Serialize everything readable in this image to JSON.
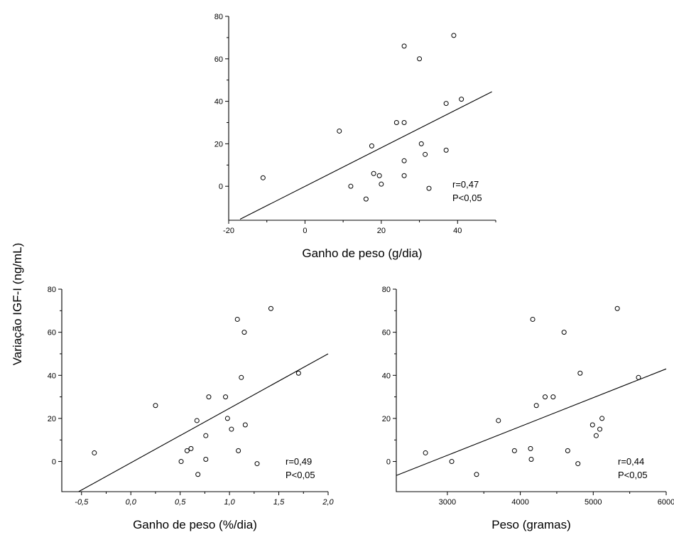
{
  "shared_ylabel": "Variação IGF-I (ng/mL)",
  "chart_data": [
    {
      "id": "top",
      "type": "scatter",
      "xlabel": "Ganho de peso (g/dia)",
      "ylabel": "Variação IGF-I (ng/mL)",
      "xlim": [
        -20,
        50
      ],
      "ylim": [
        -16,
        80
      ],
      "xticks": [
        -20,
        0,
        20,
        40
      ],
      "xtick_labels": [
        "-20",
        "0",
        "20",
        "40"
      ],
      "xtick_italic": false,
      "yticks": [
        0,
        20,
        40,
        60,
        80
      ],
      "ytick_labels": [
        "0",
        "20",
        "40",
        "60",
        "80"
      ],
      "points": [
        {
          "x": -11,
          "y": 4
        },
        {
          "x": 9,
          "y": 26
        },
        {
          "x": 12,
          "y": 0
        },
        {
          "x": 16,
          "y": -6
        },
        {
          "x": 17.5,
          "y": 19
        },
        {
          "x": 18,
          "y": 6
        },
        {
          "x": 19.5,
          "y": 5
        },
        {
          "x": 20,
          "y": 1
        },
        {
          "x": 24,
          "y": 30
        },
        {
          "x": 26,
          "y": 66
        },
        {
          "x": 26,
          "y": 30
        },
        {
          "x": 26,
          "y": 12
        },
        {
          "x": 26,
          "y": 5
        },
        {
          "x": 30,
          "y": 60
        },
        {
          "x": 30.5,
          "y": 20
        },
        {
          "x": 31.5,
          "y": 15
        },
        {
          "x": 32.5,
          "y": -1
        },
        {
          "x": 37,
          "y": 39
        },
        {
          "x": 37,
          "y": 17
        },
        {
          "x": 39,
          "y": 71
        },
        {
          "x": 41,
          "y": 41
        }
      ],
      "fit_line": {
        "x": [
          -17,
          49
        ],
        "y": [
          -15.5,
          44.5
        ]
      },
      "annotation": [
        "r=0,47",
        "P<0,05"
      ]
    },
    {
      "id": "bottom-left",
      "type": "scatter",
      "xlabel": "Ganho de peso (%/dia)",
      "ylabel": "Variação IGF-I (ng/mL)",
      "xlim": [
        -0.7,
        2.0
      ],
      "ylim": [
        -14,
        80
      ],
      "xticks": [
        -0.5,
        0.0,
        0.5,
        1.0,
        1.5,
        2.0
      ],
      "xtick_labels": [
        "-0,5",
        "0,0",
        "0,5",
        "1,0",
        "1,5",
        "2,0"
      ],
      "xtick_italic": true,
      "yticks": [
        0,
        20,
        40,
        60,
        80
      ],
      "ytick_labels": [
        "0",
        "20",
        "40",
        "60",
        "80"
      ],
      "points": [
        {
          "x": -0.37,
          "y": 4
        },
        {
          "x": 0.25,
          "y": 26
        },
        {
          "x": 0.51,
          "y": 0
        },
        {
          "x": 0.57,
          "y": 5
        },
        {
          "x": 0.61,
          "y": 6
        },
        {
          "x": 0.67,
          "y": 19
        },
        {
          "x": 0.68,
          "y": -6
        },
        {
          "x": 0.76,
          "y": 12
        },
        {
          "x": 0.76,
          "y": 1
        },
        {
          "x": 0.79,
          "y": 30
        },
        {
          "x": 0.96,
          "y": 30
        },
        {
          "x": 0.98,
          "y": 20
        },
        {
          "x": 1.02,
          "y": 15
        },
        {
          "x": 1.08,
          "y": 66
        },
        {
          "x": 1.09,
          "y": 5
        },
        {
          "x": 1.12,
          "y": 39
        },
        {
          "x": 1.15,
          "y": 60
        },
        {
          "x": 1.16,
          "y": 17
        },
        {
          "x": 1.28,
          "y": -1
        },
        {
          "x": 1.42,
          "y": 71
        },
        {
          "x": 1.7,
          "y": 41
        }
      ],
      "fit_line": {
        "x": [
          -0.53,
          2.0
        ],
        "y": [
          -14,
          50
        ]
      },
      "annotation": [
        "r=0,49",
        "P<0,05"
      ]
    },
    {
      "id": "bottom-right",
      "type": "scatter",
      "xlabel": "Peso (gramas)",
      "ylabel": "Variação IGF-I (ng/mL)",
      "xlim": [
        2300,
        6000
      ],
      "ylim": [
        -14,
        80
      ],
      "xticks": [
        3000,
        4000,
        5000,
        6000
      ],
      "xtick_labels": [
        "3000",
        "4000",
        "5000",
        "6000"
      ],
      "xtick_italic": false,
      "yticks": [
        0,
        20,
        40,
        60,
        80
      ],
      "ytick_labels": [
        "0",
        "20",
        "40",
        "60",
        "80"
      ],
      "points": [
        {
          "x": 2700,
          "y": 4
        },
        {
          "x": 3060,
          "y": 0
        },
        {
          "x": 3400,
          "y": -6
        },
        {
          "x": 3700,
          "y": 19
        },
        {
          "x": 3920,
          "y": 5
        },
        {
          "x": 4140,
          "y": 6
        },
        {
          "x": 4150,
          "y": 1
        },
        {
          "x": 4170,
          "y": 66
        },
        {
          "x": 4220,
          "y": 26
        },
        {
          "x": 4340,
          "y": 30
        },
        {
          "x": 4450,
          "y": 30
        },
        {
          "x": 4600,
          "y": 60
        },
        {
          "x": 4650,
          "y": 5
        },
        {
          "x": 4790,
          "y": -1
        },
        {
          "x": 4820,
          "y": 41
        },
        {
          "x": 4990,
          "y": 17
        },
        {
          "x": 5040,
          "y": 12
        },
        {
          "x": 5090,
          "y": 15
        },
        {
          "x": 5120,
          "y": 20
        },
        {
          "x": 5330,
          "y": 71
        },
        {
          "x": 5620,
          "y": 39
        }
      ],
      "fit_line": {
        "x": [
          2300,
          6000
        ],
        "y": [
          -6.5,
          43
        ]
      },
      "annotation": [
        "r=0,44",
        "P<0,05"
      ]
    }
  ]
}
